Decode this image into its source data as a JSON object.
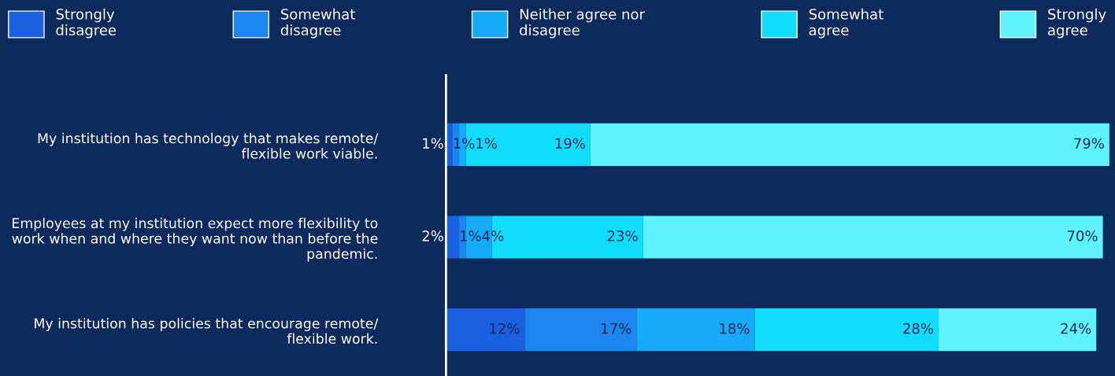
{
  "chart_data": {
    "type": "bar",
    "orientation": "horizontal",
    "stacked": true,
    "legend": "top",
    "grid": false,
    "categories": [
      "My institution has technology that makes remote/\nflexible work viable.",
      "Employees at my institution expect more flexibility to\nwork when and where they want now than before the\npandemic.",
      "My institution has policies that encourage remote/\nflexible work."
    ],
    "series": [
      {
        "name": "Strongly\ndisagree",
        "color": "#1a5fe0",
        "values": [
          1,
          2,
          12
        ],
        "value_labels": [
          "1%",
          "2%",
          "12%"
        ]
      },
      {
        "name": "Somewhat\ndisagree",
        "color": "#1a86ee",
        "values": [
          1,
          1,
          17
        ],
        "value_labels": [
          "1%",
          "1%",
          "17%"
        ]
      },
      {
        "name": "Neither agree nor\ndisagree",
        "color": "#16aaf8",
        "values": [
          1,
          4,
          18
        ],
        "value_labels": [
          "1%",
          "4%",
          "18%"
        ]
      },
      {
        "name": "Somewhat\nagree",
        "color": "#12dcfc",
        "values": [
          19,
          23,
          28
        ],
        "value_labels": [
          "19%",
          "23%",
          "28%"
        ]
      },
      {
        "name": "Strongly\nagree",
        "color": "#5ff3ff",
        "values": [
          79,
          70,
          24
        ],
        "value_labels": [
          "79%",
          "70%",
          "24%"
        ]
      }
    ]
  }
}
